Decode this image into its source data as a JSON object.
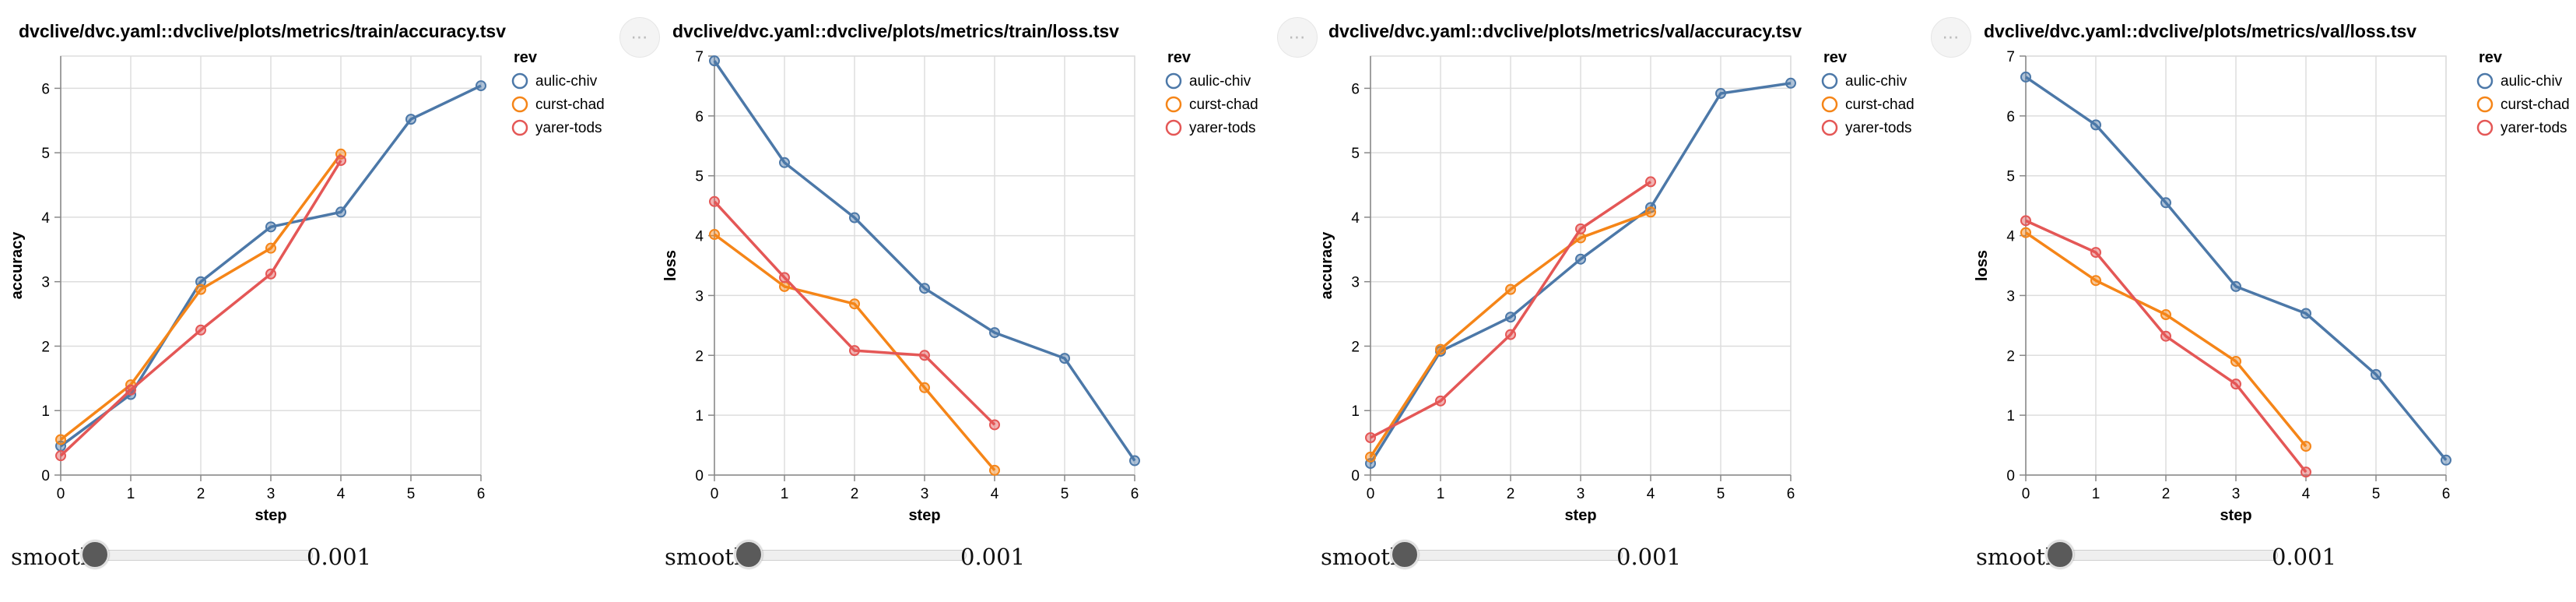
{
  "smooth_control": {
    "label": "smooth",
    "value": "0.001"
  },
  "more_button": {
    "glyph": "⋯"
  },
  "colors": {
    "aulic-chiv": "#4c78a8",
    "curst-chad": "#f58518",
    "yarer-tods": "#e45756"
  },
  "chart_data": [
    {
      "type": "line",
      "title": "dvclive/dvc.yaml::dvclive/plots/metrics/train/accuracy.tsv",
      "xlabel": "step",
      "ylabel": "accuracy",
      "xlim": [
        0,
        6
      ],
      "ylim": [
        0,
        6.5
      ],
      "xticks": [
        0,
        1,
        2,
        3,
        4,
        5,
        6
      ],
      "yticks": [
        0,
        1,
        2,
        3,
        4,
        5,
        6
      ],
      "legend_title": "rev",
      "legend_position": "top-right",
      "grid": true,
      "series": [
        {
          "name": "aulic-chiv",
          "x": [
            0,
            1,
            2,
            3,
            4,
            5,
            6
          ],
          "y": [
            0.45,
            1.25,
            3.0,
            3.85,
            4.08,
            5.52,
            6.04
          ]
        },
        {
          "name": "curst-chad",
          "x": [
            0,
            1,
            2,
            3,
            4
          ],
          "y": [
            0.55,
            1.4,
            2.88,
            3.52,
            4.98
          ]
        },
        {
          "name": "yarer-tods",
          "x": [
            0,
            1,
            2,
            3,
            4
          ],
          "y": [
            0.3,
            1.32,
            2.25,
            3.12,
            4.88
          ]
        }
      ]
    },
    {
      "type": "line",
      "title": "dvclive/dvc.yaml::dvclive/plots/metrics/train/loss.tsv",
      "xlabel": "step",
      "ylabel": "loss",
      "xlim": [
        0,
        6
      ],
      "ylim": [
        0,
        7
      ],
      "xticks": [
        0,
        1,
        2,
        3,
        4,
        5,
        6
      ],
      "yticks": [
        0,
        1,
        2,
        3,
        4,
        5,
        6,
        7
      ],
      "legend_title": "rev",
      "legend_position": "top-right",
      "grid": true,
      "series": [
        {
          "name": "aulic-chiv",
          "x": [
            0,
            1,
            2,
            3,
            4,
            5,
            6
          ],
          "y": [
            6.92,
            5.22,
            4.3,
            3.12,
            2.38,
            1.95,
            0.24
          ]
        },
        {
          "name": "curst-chad",
          "x": [
            0,
            1,
            2,
            3,
            4
          ],
          "y": [
            4.02,
            3.15,
            2.86,
            1.46,
            0.08
          ]
        },
        {
          "name": "yarer-tods",
          "x": [
            0,
            1,
            2,
            3,
            4
          ],
          "y": [
            4.57,
            3.3,
            2.08,
            2.0,
            0.84
          ]
        }
      ]
    },
    {
      "type": "line",
      "title": "dvclive/dvc.yaml::dvclive/plots/metrics/val/accuracy.tsv",
      "xlabel": "step",
      "ylabel": "accuracy",
      "xlim": [
        0,
        6
      ],
      "ylim": [
        0,
        6.5
      ],
      "xticks": [
        0,
        1,
        2,
        3,
        4,
        5,
        6
      ],
      "yticks": [
        0,
        1,
        2,
        3,
        4,
        5,
        6
      ],
      "legend_title": "rev",
      "legend_position": "top-right",
      "grid": true,
      "series": [
        {
          "name": "aulic-chiv",
          "x": [
            0,
            1,
            2,
            3,
            4,
            5,
            6
          ],
          "y": [
            0.18,
            1.92,
            2.45,
            3.35,
            4.15,
            5.92,
            6.08
          ]
        },
        {
          "name": "curst-chad",
          "x": [
            0,
            1,
            2,
            3,
            4
          ],
          "y": [
            0.28,
            1.95,
            2.88,
            3.68,
            4.08
          ]
        },
        {
          "name": "yarer-tods",
          "x": [
            0,
            1,
            2,
            3,
            4
          ],
          "y": [
            0.58,
            1.15,
            2.18,
            3.82,
            4.55
          ]
        }
      ]
    },
    {
      "type": "line",
      "title": "dvclive/dvc.yaml::dvclive/plots/metrics/val/loss.tsv",
      "xlabel": "step",
      "ylabel": "loss",
      "xlim": [
        0,
        6
      ],
      "ylim": [
        0,
        7
      ],
      "xticks": [
        0,
        1,
        2,
        3,
        4,
        5,
        6
      ],
      "yticks": [
        0,
        1,
        2,
        3,
        4,
        5,
        6,
        7
      ],
      "legend_title": "rev",
      "legend_position": "top-right",
      "grid": true,
      "series": [
        {
          "name": "aulic-chiv",
          "x": [
            0,
            1,
            2,
            3,
            4,
            5,
            6
          ],
          "y": [
            6.65,
            5.85,
            4.55,
            3.15,
            2.7,
            1.68,
            0.25
          ]
        },
        {
          "name": "curst-chad",
          "x": [
            0,
            1,
            2,
            3,
            4
          ],
          "y": [
            4.05,
            3.25,
            2.68,
            1.9,
            0.48
          ]
        },
        {
          "name": "yarer-tods",
          "x": [
            0,
            1,
            2,
            3,
            4
          ],
          "y": [
            4.25,
            3.72,
            2.32,
            1.52,
            0.05
          ]
        }
      ]
    }
  ]
}
